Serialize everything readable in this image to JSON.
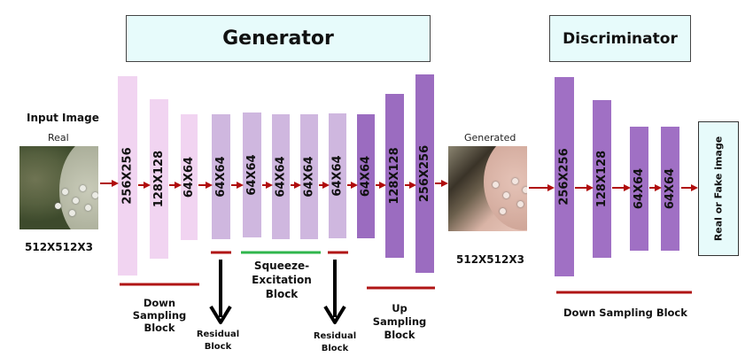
{
  "generator": {
    "title": "Generator",
    "blocks": [
      "256X256",
      "128X128",
      "64X64",
      "64X64",
      "64X64",
      "64X64",
      "64X64",
      "64X64",
      "64X64",
      "128X128",
      "256X256"
    ],
    "down_sampling_label": "Down\nSampling\nBlock",
    "squeeze_label": "Squeeze-\nExcitation\nBlock",
    "up_sampling_label": "Up\nSampling\nBlock",
    "residual_label_1": "Residual\nBlock",
    "residual_label_2": "Residual\nBlock"
  },
  "discriminator": {
    "title": "Discriminator",
    "blocks": [
      "256X256",
      "128X128",
      "64X64",
      "64X64"
    ],
    "down_sampling_label": "Down Sampling Block"
  },
  "input": {
    "heading": "Input Image",
    "caption": "Real",
    "size": "512X512X3"
  },
  "generated": {
    "caption": "Generated",
    "size": "512X512X3"
  },
  "output": {
    "label": "Real or Fake image"
  },
  "colors": {
    "down_block": "#f1d4f1",
    "residual_block": "#cfb7df",
    "up_block": "#9b6cc0",
    "disc_block": "#a070c4",
    "arrow": "#b00d0d",
    "underline": "#b01515",
    "se_underline": "#2fb64c",
    "title_fill": "#e7fbfb"
  }
}
